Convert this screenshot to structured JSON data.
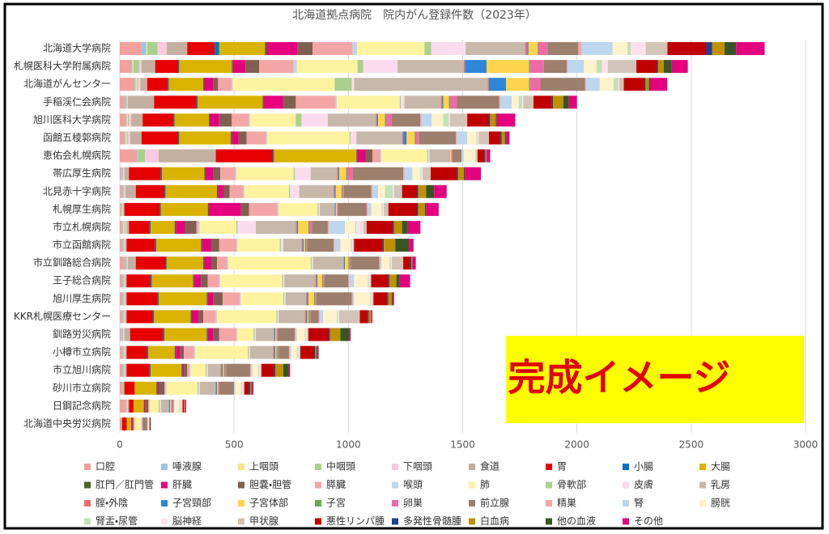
{
  "chart_data": {
    "type": "stacked-bar-horizontal",
    "title": "北海道拠点病院　院内がん登録件数（2023年）",
    "annotation": "完成イメージ",
    "categories": [
      "北海道大学病院",
      "札幌医科大学附属病院",
      "北海道がんセンター",
      "手稲渓仁会病院",
      "旭川医科大学病院",
      "函館五稜郭病院",
      "恵佑会札幌病院",
      "帯広厚生病院",
      "北見赤十字病院",
      "札幌厚生病院",
      "市立札幌病院",
      "市立函館病院",
      "市立釧路総合病院",
      "王子総合病院",
      "旭川厚生病院",
      "KKR札幌医療センター",
      "釧路労災病院",
      "小樽市立病院",
      "市立旭川病院",
      "砂川市立病院",
      "日鋼記念病院",
      "北海道中央労災病院"
    ],
    "xlim": [
      0,
      3000
    ],
    "xticks": [
      0,
      500,
      1000,
      1500,
      2000,
      2500,
      3000
    ],
    "grid": true,
    "series": [
      {
        "name": "口腔",
        "color": "#f4a09c",
        "values": [
          95,
          50,
          65,
          20,
          25,
          20,
          75,
          5,
          10,
          5,
          10,
          10,
          20,
          10,
          10,
          10,
          5,
          10,
          10,
          10,
          25,
          5
        ]
      },
      {
        "name": "唾液腺",
        "color": "#9dc3e6",
        "values": [
          20,
          5,
          5,
          5,
          5,
          5,
          5,
          5,
          5,
          0,
          5,
          5,
          5,
          5,
          5,
          5,
          5,
          5,
          5,
          0,
          0,
          0
        ]
      },
      {
        "name": "上咽頭",
        "color": "#f7e58c",
        "values": [
          5,
          5,
          5,
          0,
          5,
          5,
          0,
          0,
          0,
          0,
          5,
          0,
          0,
          0,
          0,
          0,
          0,
          0,
          0,
          0,
          0,
          0
        ]
      },
      {
        "name": "中咽頭",
        "color": "#a9d18e",
        "values": [
          45,
          25,
          5,
          5,
          5,
          5,
          30,
          5,
          5,
          5,
          5,
          5,
          5,
          5,
          5,
          5,
          5,
          5,
          5,
          5,
          5,
          0
        ]
      },
      {
        "name": "下咽頭",
        "color": "#f9c9e0",
        "values": [
          40,
          10,
          10,
          5,
          10,
          10,
          60,
          5,
          5,
          5,
          5,
          5,
          5,
          5,
          5,
          5,
          5,
          5,
          5,
          0,
          5,
          0
        ]
      },
      {
        "name": "食道",
        "color": "#c4b0a0",
        "values": [
          90,
          60,
          30,
          115,
          50,
          50,
          250,
          20,
          45,
          5,
          10,
          5,
          35,
          5,
          5,
          5,
          25,
          5,
          5,
          5,
          5,
          5
        ]
      },
      {
        "name": "胃",
        "color": "#e60000",
        "values": [
          120,
          100,
          90,
          185,
          135,
          160,
          250,
          140,
          125,
          155,
          90,
          125,
          130,
          105,
          135,
          115,
          145,
          90,
          100,
          45,
          20,
          20
        ]
      },
      {
        "name": "小腸",
        "color": "#0070c0",
        "values": [
          20,
          5,
          5,
          5,
          5,
          5,
          5,
          5,
          5,
          5,
          5,
          5,
          5,
          5,
          5,
          5,
          5,
          5,
          5,
          0,
          0,
          0
        ]
      },
      {
        "name": "大腸",
        "color": "#d9b300",
        "values": [
          200,
          230,
          150,
          285,
          150,
          225,
          360,
          185,
          225,
          205,
          105,
          195,
          160,
          180,
          210,
          160,
          185,
          115,
          135,
          95,
          45,
          20
        ]
      },
      {
        "name": "肛門／肛門管",
        "color": "#4f6228",
        "values": [
          8,
          5,
          5,
          5,
          5,
          5,
          5,
          5,
          5,
          5,
          5,
          5,
          5,
          5,
          5,
          5,
          5,
          5,
          5,
          5,
          0,
          0
        ]
      },
      {
        "name": "肝臓",
        "color": "#e6007e",
        "values": [
          135,
          55,
          40,
          85,
          40,
          30,
          35,
          35,
          25,
          140,
          40,
          40,
          30,
          30,
          25,
          30,
          25,
          20,
          5,
          5,
          5,
          5
        ]
      },
      {
        "name": "胆嚢・胆管",
        "color": "#7f6050",
        "values": [
          65,
          60,
          20,
          55,
          55,
          35,
          30,
          30,
          25,
          35,
          50,
          35,
          25,
          30,
          40,
          20,
          25,
          15,
          15,
          25,
          15,
          5
        ]
      },
      {
        "name": "膵臓",
        "color": "#f4a6a6",
        "values": [
          175,
          150,
          60,
          175,
          75,
          85,
          35,
          65,
          60,
          125,
          10,
          75,
          45,
          50,
          75,
          55,
          75,
          45,
          10,
          5,
          5,
          5
        ]
      },
      {
        "name": "喉頭",
        "color": "#bdd7ee",
        "values": [
          20,
          15,
          5,
          5,
          5,
          5,
          5,
          5,
          5,
          5,
          5,
          5,
          5,
          5,
          5,
          5,
          5,
          5,
          5,
          5,
          0,
          0
        ]
      },
      {
        "name": "肺",
        "color": "#fff3a0",
        "values": [
          295,
          265,
          445,
          275,
          200,
          360,
          200,
          250,
          195,
          170,
          160,
          185,
          360,
          270,
          185,
          260,
          70,
          230,
          65,
          135,
          40,
          25
        ]
      },
      {
        "name": "骨軟部",
        "color": "#a9d18e",
        "values": [
          30,
          25,
          75,
          5,
          25,
          5,
          5,
          5,
          5,
          5,
          5,
          5,
          5,
          5,
          5,
          5,
          5,
          5,
          5,
          5,
          5,
          0
        ]
      },
      {
        "name": "皮膚",
        "color": "#fbdcef",
        "values": [
          150,
          150,
          10,
          15,
          115,
          25,
          5,
          70,
          40,
          5,
          80,
          10,
          5,
          5,
          5,
          5,
          5,
          5,
          5,
          5,
          5,
          5
        ]
      },
      {
        "name": "乳房",
        "color": "#c8b8aa",
        "values": [
          260,
          290,
          585,
          160,
          210,
          200,
          90,
          115,
          150,
          65,
          175,
          80,
          135,
          135,
          90,
          115,
          80,
          100,
          55,
          70,
          35,
          5
        ]
      },
      {
        "name": "腟・外陰",
        "color": "#f26d6d",
        "values": [
          10,
          5,
          5,
          5,
          5,
          5,
          0,
          5,
          5,
          0,
          5,
          5,
          0,
          5,
          5,
          5,
          0,
          5,
          5,
          0,
          0,
          0
        ]
      },
      {
        "name": "子宮頸部",
        "color": "#2f86d6",
        "values": [
          5,
          95,
          75,
          5,
          5,
          15,
          0,
          5,
          5,
          5,
          5,
          5,
          5,
          5,
          5,
          5,
          5,
          5,
          5,
          5,
          5,
          0
        ]
      },
      {
        "name": "子宮体部",
        "color": "#ffd44d",
        "values": [
          40,
          185,
          100,
          25,
          30,
          35,
          5,
          30,
          25,
          5,
          45,
          5,
          15,
          20,
          25,
          5,
          5,
          5,
          5,
          5,
          5,
          0
        ]
      },
      {
        "name": "子宮",
        "color": "#6aa84f",
        "values": [
          3,
          5,
          5,
          5,
          5,
          5,
          0,
          5,
          5,
          0,
          5,
          5,
          5,
          5,
          5,
          5,
          0,
          5,
          5,
          0,
          0,
          0
        ]
      },
      {
        "name": "卵巣",
        "color": "#f06aa8",
        "values": [
          40,
          60,
          45,
          30,
          25,
          15,
          5,
          25,
          5,
          5,
          10,
          5,
          5,
          5,
          5,
          5,
          5,
          5,
          5,
          5,
          5,
          0
        ]
      },
      {
        "name": "前立腺",
        "color": "#9c7f6c",
        "values": [
          135,
          100,
          195,
          185,
          125,
          160,
          40,
          220,
          120,
          125,
          70,
          115,
          125,
          105,
          155,
          35,
          75,
          45,
          105,
          65,
          5,
          20
        ]
      },
      {
        "name": "精巣",
        "color": "#f4a6a6",
        "values": [
          15,
          5,
          5,
          5,
          5,
          5,
          0,
          5,
          5,
          5,
          5,
          5,
          5,
          5,
          5,
          5,
          5,
          5,
          5,
          0,
          0,
          0
        ]
      },
      {
        "name": "腎",
        "color": "#bdd7ee",
        "values": [
          135,
          70,
          60,
          50,
          45,
          45,
          10,
          35,
          25,
          15,
          70,
          25,
          5,
          20,
          5,
          15,
          5,
          5,
          5,
          5,
          5,
          5
        ]
      },
      {
        "name": "膀胱",
        "color": "#fff2cc",
        "values": [
          65,
          55,
          60,
          30,
          50,
          40,
          50,
          35,
          30,
          45,
          45,
          45,
          35,
          60,
          70,
          60,
          35,
          25,
          25,
          25,
          20,
          5
        ]
      },
      {
        "name": "腎盂・尿管",
        "color": "#c5e0b4",
        "values": [
          15,
          25,
          20,
          15,
          25,
          5,
          5,
          5,
          35,
          5,
          5,
          5,
          5,
          5,
          5,
          5,
          5,
          5,
          5,
          5,
          5,
          0
        ]
      },
      {
        "name": "脳神経",
        "color": "#fde2ee",
        "values": [
          65,
          25,
          5,
          5,
          5,
          5,
          0,
          5,
          5,
          5,
          30,
          5,
          5,
          5,
          5,
          5,
          5,
          5,
          5,
          5,
          5,
          0
        ]
      },
      {
        "name": "甲状腺",
        "color": "#d2c4b6",
        "values": [
          95,
          125,
          20,
          45,
          75,
          45,
          5,
          35,
          35,
          20,
          15,
          5,
          50,
          5,
          5,
          90,
          5,
          5,
          5,
          5,
          5,
          0
        ]
      },
      {
        "name": "悪性リンパ腫",
        "color": "#c00000",
        "values": [
          170,
          90,
          90,
          80,
          95,
          50,
          30,
          115,
          65,
          125,
          115,
          125,
          30,
          75,
          60,
          35,
          90,
          60,
          55,
          20,
          5,
          5
        ]
      },
      {
        "name": "多発性骨髄腫",
        "color": "#1f3f8f",
        "values": [
          25,
          5,
          5,
          5,
          5,
          5,
          5,
          5,
          5,
          5,
          5,
          5,
          5,
          5,
          5,
          5,
          5,
          5,
          5,
          5,
          0,
          0
        ]
      },
      {
        "name": "白血病",
        "color": "#bf9000",
        "values": [
          55,
          25,
          15,
          45,
          25,
          15,
          5,
          25,
          35,
          30,
          35,
          50,
          5,
          30,
          15,
          10,
          45,
          5,
          35,
          5,
          5,
          0
        ]
      },
      {
        "name": "他の血液",
        "color": "#375623",
        "values": [
          50,
          35,
          5,
          25,
          5,
          5,
          0,
          5,
          35,
          5,
          25,
          60,
          0,
          15,
          5,
          0,
          40,
          5,
          25,
          5,
          0,
          0
        ]
      },
      {
        "name": "その他",
        "color": "#e4007f",
        "values": [
          125,
          70,
          75,
          35,
          80,
          15,
          15,
          70,
          55,
          55,
          55,
          20,
          15,
          45,
          5,
          5,
          5,
          5,
          5,
          5,
          5,
          0
        ]
      }
    ]
  }
}
